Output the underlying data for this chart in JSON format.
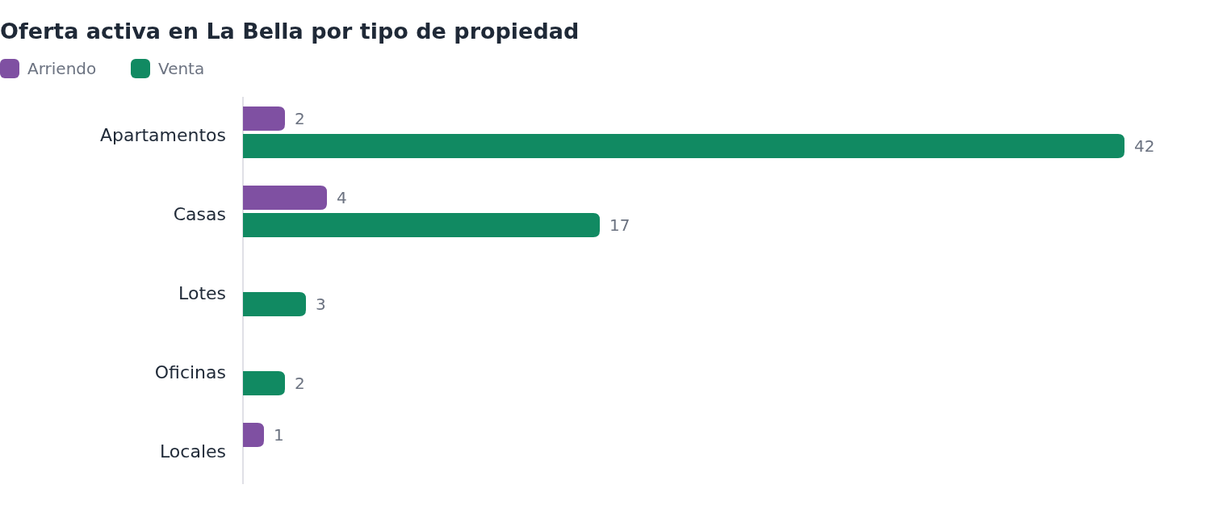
{
  "chart_data": {
    "type": "bar",
    "orientation": "horizontal",
    "title": "Oferta activa en La Bella por tipo de propiedad",
    "categories": [
      "Apartamentos",
      "Casas",
      "Lotes",
      "Oficinas",
      "Locales"
    ],
    "series": [
      {
        "name": "Arriendo",
        "color": "#7f50a2",
        "values": [
          2,
          4,
          null,
          null,
          1
        ]
      },
      {
        "name": "Venta",
        "color": "#118a62",
        "values": [
          42,
          17,
          3,
          2,
          null
        ]
      }
    ],
    "data_labels": true,
    "legend": "top left",
    "tick_labels": "y"
  }
}
